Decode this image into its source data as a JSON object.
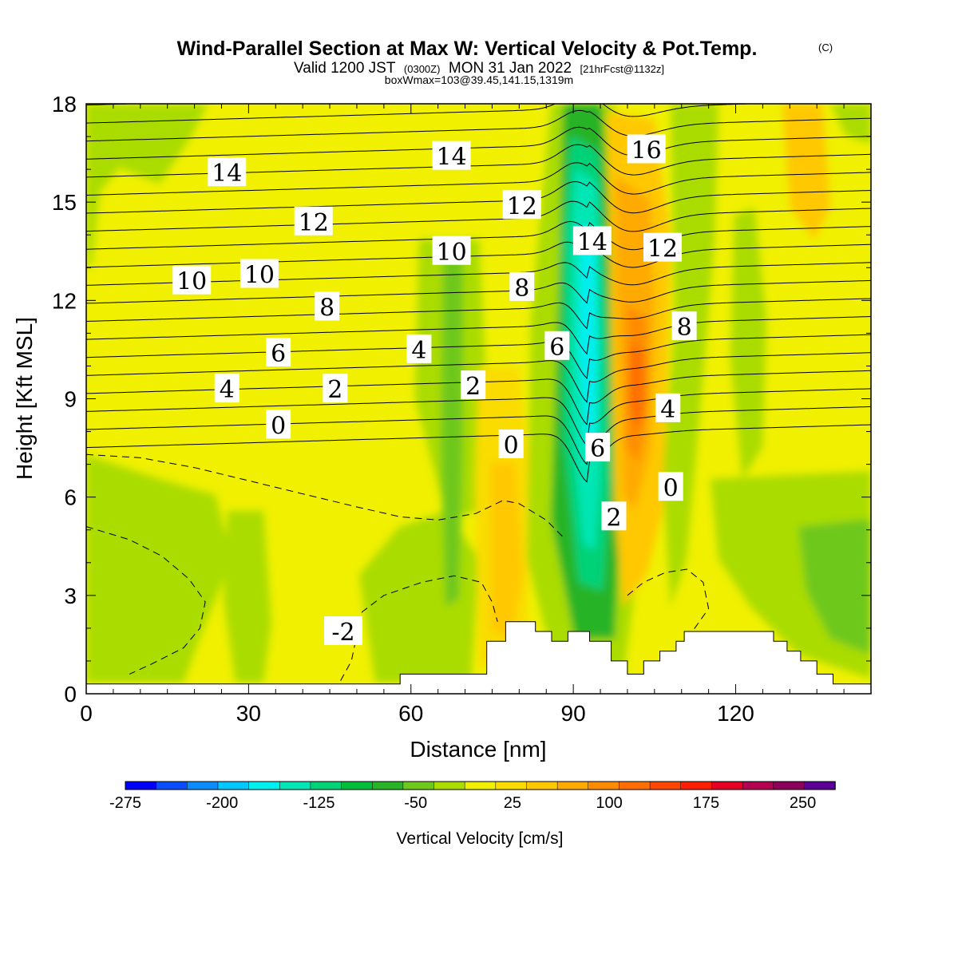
{
  "title": {
    "main": "Wind-Parallel Section at Max W: Vertical Velocity & Pot.Temp.",
    "copyright": "(C)",
    "valid_prefix": "Valid 1200 JST",
    "valid_utc": "(0300Z)",
    "valid_date": "MON 31 Jan 2022",
    "forecast": "[21hrFcst@1132z]",
    "box_info": "boxWmax=103@39.45,141.15,1319m"
  },
  "chart_data": {
    "type": "heatmap",
    "xlabel": "Distance [nm]",
    "ylabel": "Height [Kft MSL]",
    "xlim": [
      0,
      145
    ],
    "ylim": [
      0,
      18
    ],
    "x_ticks": [
      "0",
      "30",
      "60",
      "90",
      "120"
    ],
    "y_ticks": [
      "0",
      "3",
      "6",
      "9",
      "12",
      "15",
      "18"
    ],
    "grid": false,
    "colorbar": {
      "title": "Vertical Velocity [cm/s]",
      "tick_labels": [
        "-275",
        "-200",
        "-125",
        "-50",
        "25",
        "100",
        "175",
        "250"
      ],
      "levels": [
        -275,
        -250,
        -225,
        -200,
        -175,
        -150,
        -125,
        -100,
        -75,
        -50,
        -25,
        0,
        25,
        50,
        75,
        100,
        125,
        150,
        175,
        200,
        225,
        250,
        275
      ],
      "colors": [
        "#0000ff",
        "#0a4dff",
        "#0a8cff",
        "#00c8ff",
        "#00f0f0",
        "#00e6b4",
        "#00d278",
        "#00be3c",
        "#28b428",
        "#6ec81e",
        "#aadc00",
        "#f0f000",
        "#fadc00",
        "#ffc800",
        "#ffaa00",
        "#ff8c00",
        "#ff6e00",
        "#ff4600",
        "#ff1e00",
        "#e60023",
        "#b40050",
        "#8c005a",
        "#5a0096"
      ]
    },
    "theta_contour_labels": [
      {
        "text": "14",
        "x": 26,
        "y": 15.9
      },
      {
        "text": "14",
        "x": 67.5,
        "y": 16.4
      },
      {
        "text": "16",
        "x": 103.5,
        "y": 16.6
      },
      {
        "text": "12",
        "x": 42,
        "y": 14.4
      },
      {
        "text": "12",
        "x": 80.5,
        "y": 14.9
      },
      {
        "text": "14",
        "x": 93.5,
        "y": 13.8
      },
      {
        "text": "10",
        "x": 19.5,
        "y": 12.6
      },
      {
        "text": "10",
        "x": 32,
        "y": 12.8
      },
      {
        "text": "10",
        "x": 67.5,
        "y": 13.5
      },
      {
        "text": "12",
        "x": 106.5,
        "y": 13.6
      },
      {
        "text": "8",
        "x": 44.5,
        "y": 11.8
      },
      {
        "text": "8",
        "x": 80.5,
        "y": 12.4
      },
      {
        "text": "8",
        "x": 110.5,
        "y": 11.2
      },
      {
        "text": "6",
        "x": 35.5,
        "y": 10.4
      },
      {
        "text": "4",
        "x": 61.5,
        "y": 10.5
      },
      {
        "text": "6",
        "x": 87,
        "y": 10.6
      },
      {
        "text": "4",
        "x": 26,
        "y": 9.3
      },
      {
        "text": "2",
        "x": 46,
        "y": 9.3
      },
      {
        "text": "2",
        "x": 71.5,
        "y": 9.4
      },
      {
        "text": "4",
        "x": 107.5,
        "y": 8.7
      },
      {
        "text": "0",
        "x": 35.5,
        "y": 8.2
      },
      {
        "text": "0",
        "x": 78.5,
        "y": 7.6
      },
      {
        "text": "6",
        "x": 94.5,
        "y": 7.5
      },
      {
        "text": "0",
        "x": 108,
        "y": 6.3
      },
      {
        "text": "2",
        "x": 97.5,
        "y": 5.4
      },
      {
        "text": "-2",
        "x": 47.5,
        "y": 1.9
      }
    ],
    "terrain": [
      [
        0,
        0.3
      ],
      [
        58,
        0.3
      ],
      [
        58,
        0.6
      ],
      [
        74,
        0.6
      ],
      [
        74,
        1.6
      ],
      [
        77.5,
        1.6
      ],
      [
        77.5,
        2.2
      ],
      [
        83,
        2.2
      ],
      [
        83,
        1.9
      ],
      [
        86,
        1.9
      ],
      [
        86,
        1.6
      ],
      [
        89,
        1.6
      ],
      [
        89,
        1.9
      ],
      [
        93,
        1.9
      ],
      [
        93,
        1.6
      ],
      [
        97,
        1.6
      ],
      [
        97,
        1.0
      ],
      [
        100,
        1.0
      ],
      [
        100,
        0.6
      ],
      [
        103,
        0.6
      ],
      [
        103,
        1.0
      ],
      [
        106,
        1.0
      ],
      [
        106,
        1.3
      ],
      [
        109,
        1.3
      ],
      [
        109,
        1.6
      ],
      [
        110.5,
        1.6
      ],
      [
        110.5,
        1.9
      ],
      [
        127,
        1.9
      ],
      [
        127,
        1.6
      ],
      [
        129.5,
        1.6
      ],
      [
        129.5,
        1.3
      ],
      [
        132,
        1.3
      ],
      [
        132,
        1.0
      ],
      [
        135,
        1.0
      ],
      [
        135,
        0.6
      ],
      [
        138,
        0.6
      ],
      [
        138,
        0.3
      ],
      [
        145,
        0.3
      ],
      [
        145,
        0
      ],
      [
        0,
        0
      ]
    ]
  }
}
